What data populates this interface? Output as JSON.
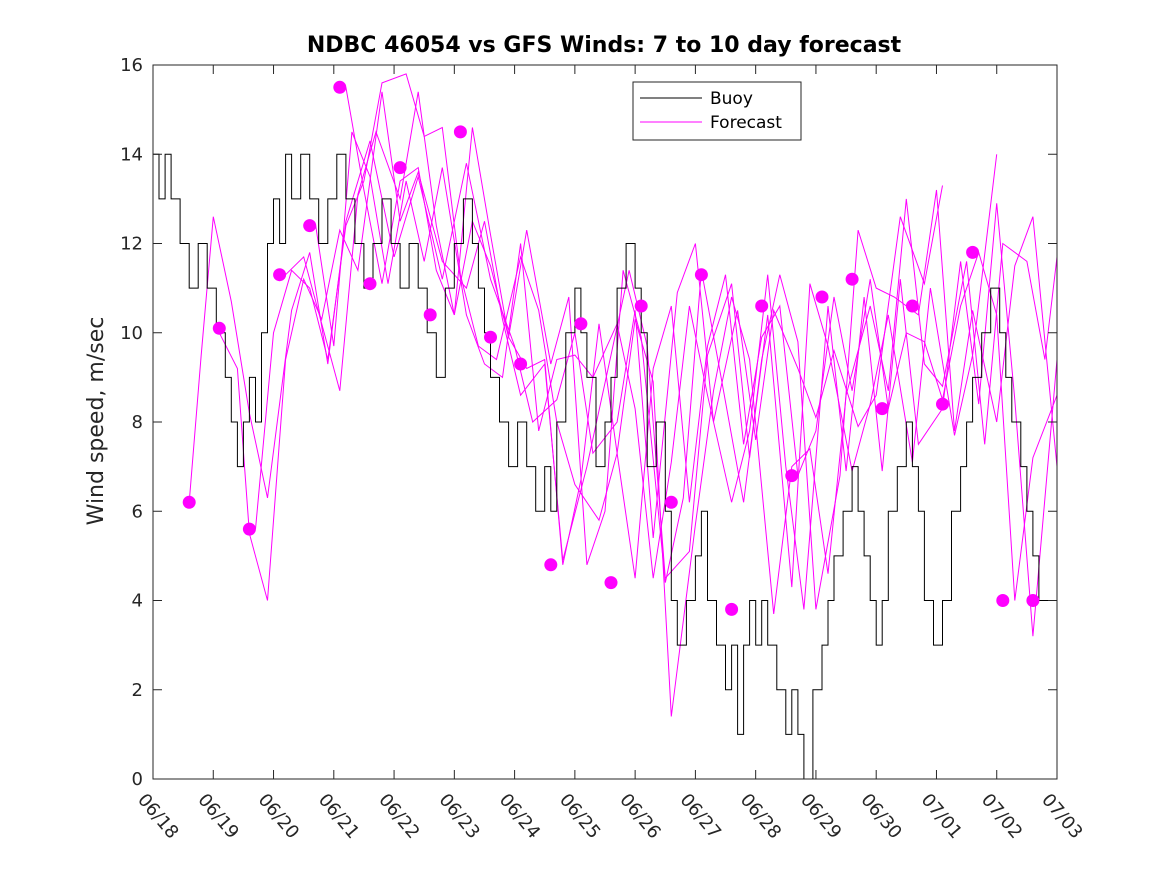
{
  "chart_data": {
    "type": "line",
    "title": "NDBC 46054 vs GFS Winds: 7 to 10 day forecast",
    "xlabel": "",
    "ylabel": "Wind speed, m/sec",
    "ylim": [
      0,
      16
    ],
    "yticks": [
      0,
      2,
      4,
      6,
      8,
      10,
      12,
      14,
      16
    ],
    "xlim": [
      0,
      15
    ],
    "xtick_labels": [
      "06/18",
      "06/19",
      "06/20",
      "06/21",
      "06/22",
      "06/23",
      "06/24",
      "06/25",
      "06/26",
      "06/27",
      "06/28",
      "06/29",
      "06/30",
      "07/01",
      "07/02",
      "07/03"
    ],
    "grid": false,
    "legend": {
      "position": "top-right",
      "entries": [
        "Buoy",
        "Forecast"
      ]
    },
    "colors": {
      "buoy": "#000000",
      "forecast": "#ff00ff"
    },
    "buoy": {
      "name": "Buoy",
      "x": [
        0,
        0.1,
        0.2,
        0.3,
        0.45,
        0.6,
        0.75,
        0.9,
        1.05,
        1.2,
        1.3,
        1.4,
        1.5,
        1.6,
        1.7,
        1.8,
        1.9,
        2.0,
        2.1,
        2.2,
        2.3,
        2.45,
        2.6,
        2.75,
        2.9,
        3.05,
        3.2,
        3.35,
        3.5,
        3.65,
        3.8,
        3.95,
        4.1,
        4.25,
        4.4,
        4.55,
        4.7,
        4.85,
        5.0,
        5.15,
        5.3,
        5.4,
        5.5,
        5.6,
        5.75,
        5.9,
        6.05,
        6.2,
        6.35,
        6.5,
        6.6,
        6.7,
        6.85,
        7.0,
        7.1,
        7.2,
        7.35,
        7.5,
        7.6,
        7.7,
        7.85,
        8.0,
        8.1,
        8.2,
        8.35,
        8.5,
        8.6,
        8.7,
        8.85,
        9.0,
        9.1,
        9.2,
        9.35,
        9.5,
        9.6,
        9.7,
        9.8,
        9.9,
        10.0,
        10.1,
        10.2,
        10.35,
        10.5,
        10.6,
        10.7,
        10.8,
        10.95,
        11.1,
        11.2,
        11.3,
        11.45,
        11.6,
        11.7,
        11.8,
        11.9,
        12.0,
        12.1,
        12.2,
        12.35,
        12.5,
        12.6,
        12.7,
        12.8,
        12.95,
        13.1,
        13.25,
        13.4,
        13.5,
        13.6,
        13.75,
        13.9,
        14.05,
        14.15,
        14.25,
        14.4,
        14.5,
        14.6,
        14.7,
        14.85,
        15.0
      ],
      "values": [
        14,
        13,
        14,
        13,
        12,
        11,
        12,
        11,
        10,
        9,
        8,
        7,
        8,
        9,
        8,
        10,
        12,
        13,
        12,
        14,
        13,
        14,
        13,
        12,
        13,
        14,
        13,
        12,
        11,
        12,
        13,
        12,
        11,
        12,
        11,
        10,
        9,
        11,
        12,
        13,
        12,
        11,
        10,
        9,
        8,
        7,
        8,
        7,
        6,
        7,
        6,
        8,
        10,
        11,
        10,
        9,
        7,
        8,
        9,
        11,
        12,
        11,
        10,
        7,
        8,
        6,
        4,
        3,
        4,
        5,
        6,
        4,
        3,
        2,
        3,
        1,
        3,
        4,
        3,
        4,
        3,
        2,
        1,
        2,
        1,
        0,
        2,
        3,
        4,
        5,
        6,
        7,
        6,
        5,
        4,
        3,
        4,
        6,
        7,
        8,
        7,
        6,
        4,
        3,
        4,
        6,
        7,
        8,
        9,
        10,
        11,
        10,
        9,
        8,
        7,
        6,
        5,
        4,
        4,
        4
      ]
    },
    "forecast_runs": [
      {
        "name": "Forecast",
        "x": [
          0.6,
          0.8,
          1.0,
          1.3,
          1.6,
          1.9,
          2.3,
          2.6,
          2.9,
          3.2,
          3.6,
          4.0,
          4.4,
          4.8,
          5.2,
          5.6,
          6.0,
          6.3,
          6.7,
          7.0,
          7.3,
          7.7,
          8.0,
          8.3,
          8.7,
          9.0,
          9.3,
          9.7,
          10.0,
          10.3,
          10.7,
          11.0,
          11.3,
          11.7,
          12.0,
          12.4,
          12.8,
          13.1
        ],
        "values": [
          6.2,
          9.5,
          12.6,
          10.7,
          8.2,
          6.3,
          10.5,
          11.8,
          9.3,
          12.5,
          14.3,
          11.7,
          13.5,
          11.2,
          13.8,
          11.2,
          9.7,
          8.0,
          8.5,
          10.0,
          7.3,
          8.0,
          10.5,
          5.4,
          10.9,
          12.0,
          8.0,
          10.5,
          7.6,
          10.5,
          9.2,
          8.1,
          9.6,
          7.9,
          8.6,
          12.6,
          11.1,
          13.3
        ]
      },
      {
        "name": "Forecast",
        "x": [
          1.1,
          1.4,
          1.6,
          1.9,
          2.2,
          2.5,
          2.8,
          3.1,
          3.4,
          3.8,
          4.1,
          4.4,
          4.8,
          5.2,
          5.5,
          5.8,
          6.1,
          6.5,
          6.8,
          7.2,
          7.6,
          7.9,
          8.2,
          8.5,
          8.9,
          9.2,
          9.6,
          9.9,
          10.2,
          10.6,
          10.9,
          11.2,
          11.6,
          11.9,
          12.2,
          12.6,
          12.9,
          13.3,
          13.6,
          14.0
        ],
        "values": [
          10.0,
          9.2,
          5.5,
          4.0,
          9.4,
          11.2,
          10.3,
          12.3,
          11.4,
          15.4,
          12.5,
          13.6,
          11.6,
          11.0,
          12.5,
          10.3,
          8.6,
          9.3,
          4.9,
          7.0,
          9.5,
          11.4,
          9.7,
          4.5,
          5.1,
          9.5,
          11.1,
          7.2,
          10.4,
          4.3,
          11.1,
          9.7,
          6.9,
          8.4,
          10.4,
          7.1,
          11.0,
          7.7,
          9.5,
          14.0
        ]
      },
      {
        "name": "Forecast",
        "x": [
          1.7,
          2.0,
          2.3,
          2.6,
          2.9,
          3.2,
          3.5,
          3.8,
          4.2,
          4.5,
          4.8,
          5.1,
          5.4,
          5.7,
          6.1,
          6.4,
          6.7,
          7.0,
          7.4,
          7.7,
          8.0,
          8.3,
          8.6,
          9.0,
          9.3,
          9.6,
          9.9,
          10.3,
          10.6,
          10.9,
          11.2,
          11.5,
          11.9,
          12.2,
          12.5,
          12.8,
          13.1,
          13.5,
          13.8,
          14.1,
          14.5,
          14.8,
          15.0
        ],
        "values": [
          5.6,
          10.0,
          11.4,
          11.0,
          9.4,
          12.4,
          13.4,
          15.6,
          15.8,
          14.4,
          14.6,
          11.3,
          9.7,
          9.4,
          11.7,
          10.5,
          8.0,
          6.6,
          5.8,
          7.3,
          10.3,
          8.9,
          1.4,
          5.7,
          8.7,
          10.8,
          9.4,
          3.7,
          7.0,
          7.4,
          4.6,
          8.6,
          10.6,
          8.7,
          13.0,
          9.3,
          8.8,
          11.6,
          7.5,
          12.0,
          11.6,
          9.4,
          11.7
        ]
      },
      {
        "name": "Forecast",
        "x": [
          2.2,
          2.5,
          2.8,
          3.1,
          3.4,
          3.7,
          4.1,
          4.4,
          4.7,
          5.0,
          5.3,
          5.6,
          5.9,
          6.2,
          6.6,
          6.9,
          7.2,
          7.5,
          7.8,
          8.1,
          8.5,
          8.8,
          9.1,
          9.4,
          9.8,
          10.1,
          10.4,
          10.7,
          11.0,
          11.4,
          11.7,
          12.0,
          12.3,
          12.7,
          13.0,
          13.3,
          13.6,
          14.0,
          14.3,
          14.6,
          15.0
        ],
        "values": [
          11.3,
          11.7,
          10.2,
          8.7,
          13.1,
          14.5,
          13.0,
          15.4,
          12.4,
          10.4,
          12.5,
          11.5,
          9.9,
          12.3,
          9.3,
          10.8,
          4.8,
          6.0,
          11.4,
          9.9,
          4.4,
          6.3,
          11.4,
          9.2,
          6.2,
          9.4,
          11.3,
          9.8,
          3.8,
          6.8,
          12.3,
          11.0,
          10.8,
          10.4,
          13.2,
          7.8,
          10.5,
          8.0,
          11.5,
          12.6,
          7.0
        ]
      },
      {
        "name": "Forecast",
        "x": [
          2.7,
          3.0,
          3.3,
          3.6,
          3.9,
          4.2,
          4.5,
          4.8,
          5.2,
          5.5,
          5.8,
          6.1,
          6.4,
          6.7,
          7.0,
          7.3,
          7.7,
          8.0,
          8.3,
          8.6,
          8.9,
          9.2,
          9.6,
          9.9,
          10.2,
          10.5,
          10.8,
          11.2,
          11.5,
          11.8,
          12.1,
          12.4,
          12.7,
          13.1,
          13.4,
          13.7,
          14.0,
          14.3,
          14.6,
          15.0
        ],
        "values": [
          12.4,
          9.7,
          14.5,
          13.5,
          11.1,
          13.4,
          11.6,
          13.7,
          10.4,
          9.3,
          9.0,
          12.0,
          7.8,
          9.4,
          9.5,
          9.0,
          10.2,
          8.3,
          4.5,
          7.1,
          10.6,
          8.6,
          6.2,
          7.8,
          11.3,
          7.0,
          3.8,
          10.6,
          6.9,
          10.8,
          6.9,
          11.2,
          7.5,
          8.3,
          11.6,
          8.4,
          12.9,
          8.5,
          3.2,
          9.4
        ]
      },
      {
        "name": "Forecast",
        "x": [
          3.2,
          3.5,
          3.8,
          4.1,
          4.4,
          4.7,
          5.0,
          5.3,
          5.6,
          5.9,
          6.2,
          6.5,
          6.8,
          7.1,
          7.4,
          7.7,
          8.0,
          8.3,
          8.6,
          8.9,
          9.2,
          9.5,
          9.8,
          10.1,
          10.4,
          10.7,
          11.0,
          11.3,
          11.6,
          11.9,
          12.2,
          12.5,
          12.8,
          13.1,
          13.4,
          13.7,
          14.0,
          14.3,
          14.6,
          15.0
        ],
        "values": [
          15.5,
          13.2,
          11.1,
          13.4,
          13.7,
          11.4,
          10.4,
          14.6,
          12.2,
          9.9,
          9.2,
          9.4,
          4.8,
          6.7,
          10.2,
          7.3,
          4.5,
          9.2,
          10.6,
          6.2,
          9.7,
          11.3,
          7.5,
          9.9,
          10.6,
          6.8,
          7.8,
          10.8,
          8.7,
          11.2,
          8.3,
          10.0,
          9.8,
          8.5,
          10.6,
          11.8,
          10.4,
          4.0,
          7.2,
          8.6
        ]
      }
    ],
    "forecast_markers": {
      "name": "Forecast",
      "x": [
        0.6,
        1.1,
        1.6,
        2.1,
        2.6,
        3.1,
        3.6,
        4.1,
        4.6,
        5.1,
        5.6,
        6.1,
        6.6,
        7.1,
        7.6,
        8.1,
        8.6,
        9.1,
        9.6,
        10.1,
        10.6,
        11.1,
        11.6,
        12.1,
        12.6,
        13.1,
        13.6,
        14.1,
        14.6
      ],
      "values": [
        6.2,
        10.1,
        5.6,
        11.3,
        12.4,
        15.5,
        11.1,
        13.7,
        10.4,
        14.5,
        9.9,
        9.3,
        4.8,
        10.2,
        4.4,
        10.6,
        6.2,
        11.3,
        3.8,
        10.6,
        6.8,
        10.8,
        11.2,
        8.3,
        10.6,
        8.4,
        11.8,
        4.0,
        4.0
      ]
    }
  }
}
